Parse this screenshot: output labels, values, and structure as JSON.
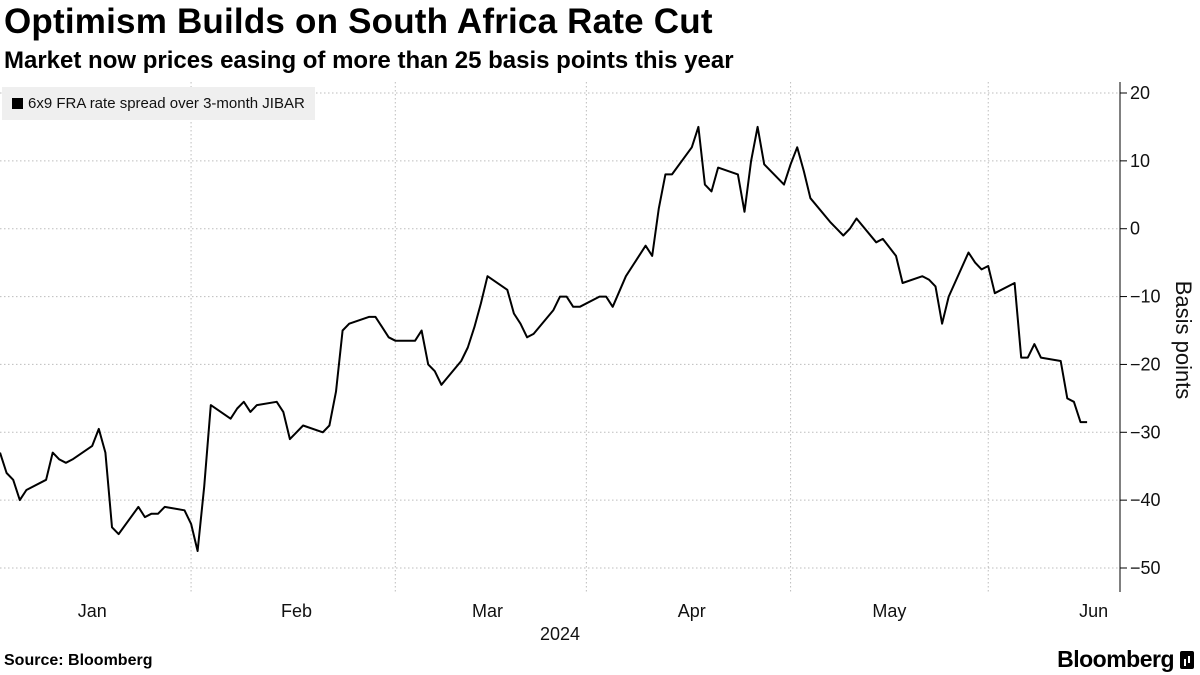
{
  "header": {
    "title": "Optimism Builds on South Africa Rate Cut",
    "subtitle": "Market now prices easing of more than 25 basis points this year"
  },
  "footer": {
    "source": "Source: Bloomberg",
    "brand": "Bloomberg"
  },
  "colors": {
    "line": "#000000",
    "grid": "#bdbdbd",
    "legend_bg": "#efefef"
  },
  "chart_data": {
    "type": "line",
    "title": "Optimism Builds on South Africa Rate Cut",
    "subtitle": "Market now prices easing of more than 25 basis points this year",
    "ylabel": "Basis points",
    "xlabel": "2024",
    "ylim": [
      -52,
      21
    ],
    "y_ticks": [
      20,
      10,
      0,
      -10,
      -20,
      -30,
      -40,
      -50
    ],
    "y_axis_side": "right",
    "x_range": [
      "2023-12-18",
      "2024-06-05"
    ],
    "x_ticks": [
      {
        "label": "Jan",
        "date": "2024-01-01"
      },
      {
        "label": "Feb",
        "date": "2024-02-01"
      },
      {
        "label": "Mar",
        "date": "2024-03-01"
      },
      {
        "label": "Apr",
        "date": "2024-04-01"
      },
      {
        "label": "May",
        "date": "2024-05-01"
      },
      {
        "label": "Jun",
        "date": "2024-06-01"
      }
    ],
    "year_label": "2024",
    "grid": "dotted",
    "legend": "top-left",
    "series": [
      {
        "name": "6x9 FRA rate spread over 3-month JIBAR",
        "points": [
          [
            "2023-12-18",
            -33
          ],
          [
            "2023-12-19",
            -36
          ],
          [
            "2023-12-20",
            -37
          ],
          [
            "2023-12-21",
            -40
          ],
          [
            "2023-12-22",
            -38.5
          ],
          [
            "2023-12-25",
            -37
          ],
          [
            "2023-12-26",
            -33
          ],
          [
            "2023-12-27",
            -34
          ],
          [
            "2023-12-28",
            -34.5
          ],
          [
            "2023-12-29",
            -34
          ],
          [
            "2024-01-01",
            -32
          ],
          [
            "2024-01-02",
            -29.5
          ],
          [
            "2024-01-03",
            -33
          ],
          [
            "2024-01-04",
            -44
          ],
          [
            "2024-01-05",
            -45
          ],
          [
            "2024-01-08",
            -41
          ],
          [
            "2024-01-09",
            -42.5
          ],
          [
            "2024-01-10",
            -42
          ],
          [
            "2024-01-11",
            -42
          ],
          [
            "2024-01-12",
            -41
          ],
          [
            "2024-01-15",
            -41.5
          ],
          [
            "2024-01-16",
            -43.5
          ],
          [
            "2024-01-17",
            -47.5
          ],
          [
            "2024-01-18",
            -38
          ],
          [
            "2024-01-19",
            -26
          ],
          [
            "2024-01-22",
            -28
          ],
          [
            "2024-01-23",
            -26.5
          ],
          [
            "2024-01-24",
            -25.5
          ],
          [
            "2024-01-25",
            -27
          ],
          [
            "2024-01-26",
            -26
          ],
          [
            "2024-01-29",
            -25.5
          ],
          [
            "2024-01-30",
            -27
          ],
          [
            "2024-01-31",
            -31
          ],
          [
            "2024-02-01",
            -30
          ],
          [
            "2024-02-02",
            -29
          ],
          [
            "2024-02-05",
            -30
          ],
          [
            "2024-02-06",
            -29
          ],
          [
            "2024-02-07",
            -24
          ],
          [
            "2024-02-08",
            -15
          ],
          [
            "2024-02-09",
            -14
          ],
          [
            "2024-02-12",
            -13
          ],
          [
            "2024-02-13",
            -13
          ],
          [
            "2024-02-14",
            -14.5
          ],
          [
            "2024-02-15",
            -16
          ],
          [
            "2024-02-16",
            -16.5
          ],
          [
            "2024-02-19",
            -16.5
          ],
          [
            "2024-02-20",
            -15
          ],
          [
            "2024-02-21",
            -20
          ],
          [
            "2024-02-22",
            -21
          ],
          [
            "2024-02-23",
            -23
          ],
          [
            "2024-02-26",
            -19.5
          ],
          [
            "2024-02-27",
            -17.5
          ],
          [
            "2024-02-28",
            -14.5
          ],
          [
            "2024-02-29",
            -11
          ],
          [
            "2024-03-01",
            -7
          ],
          [
            "2024-03-04",
            -9
          ],
          [
            "2024-03-05",
            -12.5
          ],
          [
            "2024-03-06",
            -14
          ],
          [
            "2024-03-07",
            -16
          ],
          [
            "2024-03-08",
            -15.5
          ],
          [
            "2024-03-11",
            -12
          ],
          [
            "2024-03-12",
            -10
          ],
          [
            "2024-03-13",
            -10
          ],
          [
            "2024-03-14",
            -11.5
          ],
          [
            "2024-03-15",
            -11.5
          ],
          [
            "2024-03-18",
            -10
          ],
          [
            "2024-03-19",
            -10
          ],
          [
            "2024-03-20",
            -11.5
          ],
          [
            "2024-03-22",
            -7
          ],
          [
            "2024-03-25",
            -2.5
          ],
          [
            "2024-03-26",
            -4
          ],
          [
            "2024-03-27",
            3
          ],
          [
            "2024-03-28",
            8
          ],
          [
            "2024-03-29",
            8
          ],
          [
            "2024-04-01",
            12
          ],
          [
            "2024-04-02",
            15
          ],
          [
            "2024-04-03",
            6.5
          ],
          [
            "2024-04-04",
            5.5
          ],
          [
            "2024-04-05",
            9
          ],
          [
            "2024-04-08",
            8
          ],
          [
            "2024-04-09",
            2.5
          ],
          [
            "2024-04-10",
            10
          ],
          [
            "2024-04-11",
            15
          ],
          [
            "2024-04-12",
            9.5
          ],
          [
            "2024-04-15",
            6.5
          ],
          [
            "2024-04-16",
            9.5
          ],
          [
            "2024-04-17",
            12
          ],
          [
            "2024-04-18",
            8.5
          ],
          [
            "2024-04-19",
            4.5
          ],
          [
            "2024-04-22",
            1
          ],
          [
            "2024-04-23",
            0
          ],
          [
            "2024-04-24",
            -1
          ],
          [
            "2024-04-25",
            0
          ],
          [
            "2024-04-26",
            1.5
          ],
          [
            "2024-04-29",
            -2
          ],
          [
            "2024-04-30",
            -1.5
          ],
          [
            "2024-05-02",
            -4
          ],
          [
            "2024-05-03",
            -8
          ],
          [
            "2024-05-06",
            -7
          ],
          [
            "2024-05-07",
            -7.5
          ],
          [
            "2024-05-08",
            -8.5
          ],
          [
            "2024-05-09",
            -14
          ],
          [
            "2024-05-10",
            -10
          ],
          [
            "2024-05-13",
            -3.5
          ],
          [
            "2024-05-14",
            -5
          ],
          [
            "2024-05-15",
            -6
          ],
          [
            "2024-05-16",
            -5.5
          ],
          [
            "2024-05-17",
            -9.5
          ],
          [
            "2024-05-20",
            -8
          ],
          [
            "2024-05-21",
            -19
          ],
          [
            "2024-05-22",
            -19
          ],
          [
            "2024-05-23",
            -17
          ],
          [
            "2024-05-24",
            -19
          ],
          [
            "2024-05-27",
            -19.5
          ],
          [
            "2024-05-28",
            -25
          ],
          [
            "2024-05-29",
            -25.5
          ],
          [
            "2024-05-30",
            -28.5
          ],
          [
            "2024-05-31",
            -28.5
          ]
        ]
      }
    ]
  }
}
